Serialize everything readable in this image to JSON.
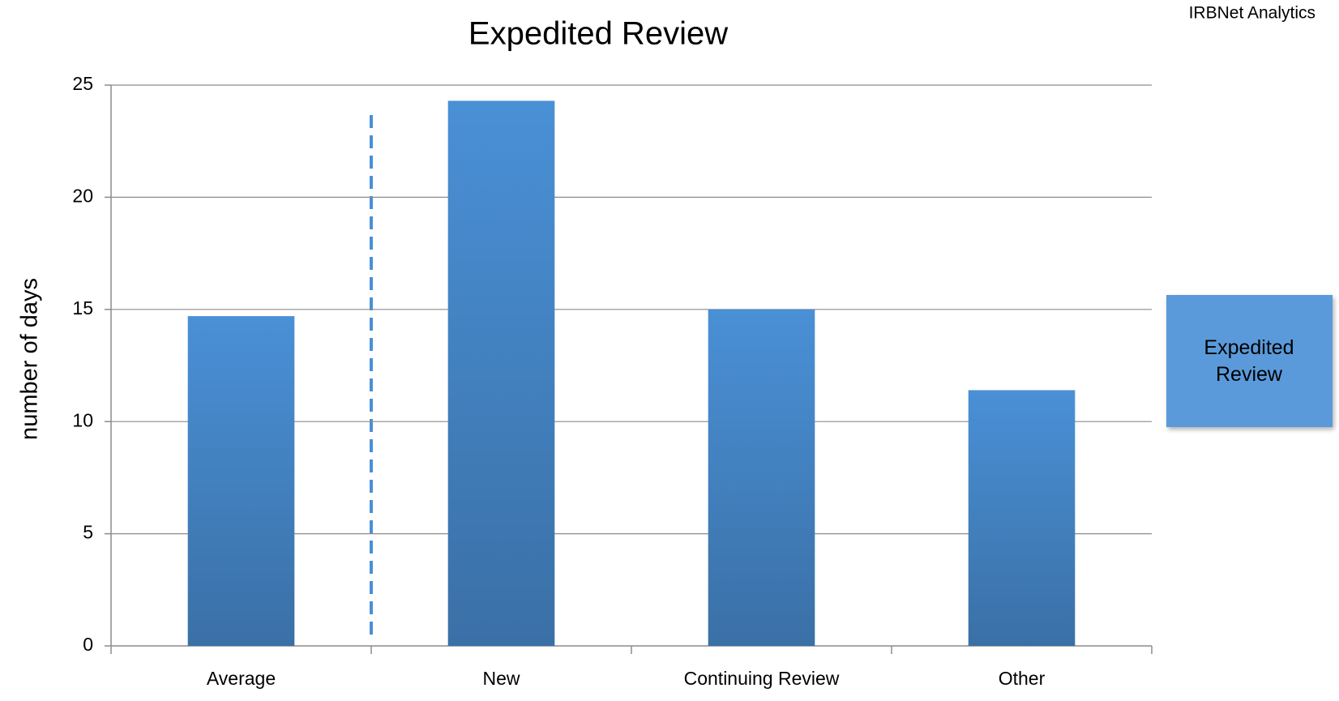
{
  "source": "IRBNet Analytics",
  "chart_data": {
    "type": "bar",
    "title": "Expedited Review",
    "y_label": "number of days",
    "categories": [
      "Average",
      "New",
      "Continuing Review",
      "Other"
    ],
    "series": [
      {
        "name": "Expedited Review",
        "color": "#4a90d6",
        "values": [
          14.7,
          24.3,
          15.0,
          11.4
        ]
      }
    ],
    "ylim": [
      0,
      25
    ],
    "yticks": [
      0,
      5,
      10,
      15,
      20,
      25
    ],
    "grid": true,
    "legend": "right"
  }
}
